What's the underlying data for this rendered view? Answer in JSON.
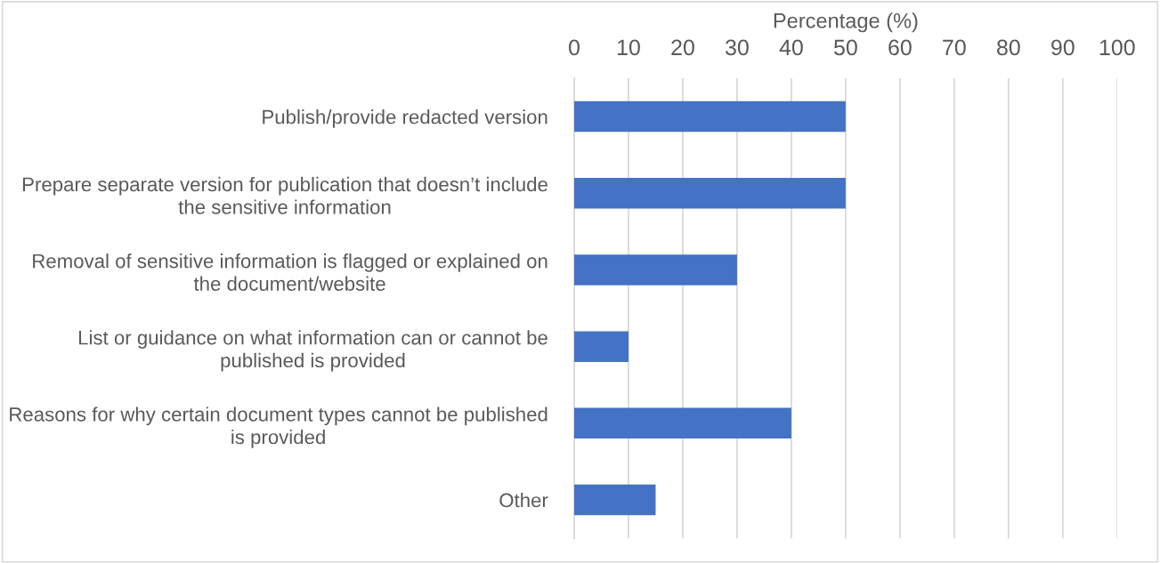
{
  "chart_data": {
    "type": "bar",
    "orientation": "horizontal",
    "xlabel": "Percentage (%)",
    "categories": [
      "Publish/provide redacted version",
      "Prepare separate version for publication that doesn’t include\nthe sensitive information",
      "Removal of sensitive information is flagged or explained on\nthe document/website",
      "List or guidance on what information can or cannot be\npublished is provided",
      "Reasons for why certain document types cannot be published\nis provided",
      "Other"
    ],
    "values": [
      50,
      50,
      30,
      10,
      40,
      15
    ],
    "color": "#4472c4",
    "xlim": [
      0,
      100
    ],
    "xticks": [
      0,
      10,
      20,
      30,
      40,
      50,
      60,
      70,
      80,
      90,
      100
    ],
    "grid": "x"
  }
}
